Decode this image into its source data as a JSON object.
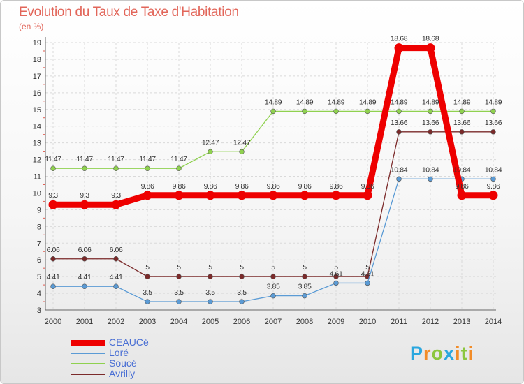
{
  "header": {
    "title": "Evolution du Taux de Taxe d'Habitation",
    "unit": "(en %)"
  },
  "logo": {
    "text": "Proxiti",
    "letters": [
      {
        "ch": "P",
        "color": "#2aa7df"
      },
      {
        "ch": "r",
        "color": "#f28c28"
      },
      {
        "ch": "o",
        "color": "#8cc63f"
      },
      {
        "ch": "x",
        "color": "#2aa7df"
      },
      {
        "ch": "i",
        "color": "#f28c28"
      },
      {
        "ch": "t",
        "color": "#8cc63f"
      },
      {
        "ch": "i",
        "color": "#f28c28"
      }
    ]
  },
  "chart_data": {
    "type": "line",
    "title": "Evolution du Taux de Taxe d'Habitation",
    "ylabel": "(en %)",
    "xlabel": "",
    "x": [
      2000,
      2001,
      2002,
      2003,
      2004,
      2005,
      2006,
      2007,
      2008,
      2009,
      2010,
      2011,
      2012,
      2013,
      2014
    ],
    "ylim": [
      3,
      19
    ],
    "yticks": [
      3,
      4,
      5,
      6,
      7,
      8,
      9,
      10,
      11,
      12,
      13,
      14,
      15,
      16,
      17,
      18,
      19
    ],
    "grid": true,
    "legend_position": "bottom-left",
    "series": [
      {
        "name": "CEAUCé",
        "color": "#ee0000",
        "values": [
          9.3,
          9.3,
          9.3,
          9.86,
          9.86,
          9.86,
          9.86,
          9.86,
          9.86,
          9.86,
          9.86,
          18.68,
          18.68,
          9.86,
          9.86
        ],
        "labels": [
          "9.3",
          "9.3",
          "9.3",
          "9.86",
          "9.86",
          "9.86",
          "9.86",
          "9.86",
          "9.86",
          "9.86",
          "9.86",
          "18.68",
          "18.68",
          "9.86",
          "9.86"
        ]
      },
      {
        "name": "Loré",
        "color": "#5b9bd5",
        "values": [
          4.41,
          4.41,
          4.41,
          3.5,
          3.5,
          3.5,
          3.5,
          3.85,
          3.85,
          4.61,
          4.61,
          10.84,
          10.84,
          10.84,
          10.84
        ],
        "labels": [
          "4.41",
          "4.41",
          "4.41",
          "3.5",
          "3.5",
          "3.5",
          "3.5",
          "3.85",
          "3.85",
          "4.61",
          "4.61",
          "10.84",
          "10.84",
          "10.84",
          "10.84"
        ]
      },
      {
        "name": "Soucé",
        "color": "#8fd14f",
        "values": [
          11.47,
          11.47,
          11.47,
          11.47,
          11.47,
          12.47,
          12.47,
          14.89,
          14.89,
          14.89,
          14.89,
          14.89,
          14.89,
          14.89,
          14.89
        ],
        "labels": [
          "11.47",
          "11.47",
          "11.47",
          "11.47",
          "11.47",
          "12.47",
          "12.47",
          "14.89",
          "14.89",
          "14.89",
          "14.89",
          "14.89",
          "14.89",
          "14.89",
          "14.89"
        ]
      },
      {
        "name": "Avrilly",
        "color": "#7b2a2a",
        "values": [
          6.06,
          6.06,
          6.06,
          5,
          5,
          5,
          5,
          5,
          5,
          5,
          5,
          13.66,
          13.66,
          13.66,
          13.66
        ],
        "labels": [
          "6.06",
          "6.06",
          "6.06",
          "5",
          "5",
          "5",
          "5",
          "5",
          "5",
          "5",
          "5",
          "13.66",
          "13.66",
          "13.66",
          "13.66"
        ]
      }
    ]
  }
}
